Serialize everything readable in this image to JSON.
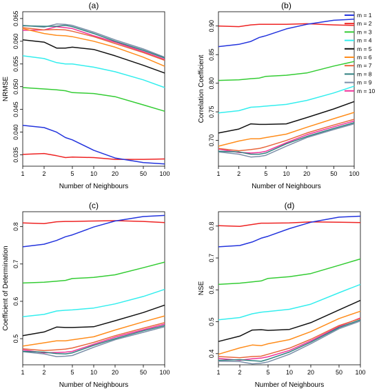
{
  "legend": [
    {
      "label": "m = 1",
      "color": "#2233dd"
    },
    {
      "label": "m = 2",
      "color": "#ee2222"
    },
    {
      "label": "m = 3",
      "color": "#33cc33"
    },
    {
      "label": "m = 4",
      "color": "#33eeee"
    },
    {
      "label": "m = 5",
      "color": "#111111"
    },
    {
      "label": "m = 6",
      "color": "#ff8c1a"
    },
    {
      "label": "m = 7",
      "color": "#e8663b"
    },
    {
      "label": "m = 8",
      "color": "#2f7f7f"
    },
    {
      "label": "m = 9",
      "color": "#7a8ea8"
    },
    {
      "label": "m = 10",
      "color": "#ee3399"
    }
  ],
  "chart_data": [
    {
      "type": "line",
      "title": "(a)",
      "xlabel": "Number of Neighbours",
      "ylabel": "NRMSE",
      "x_scale": "log",
      "xlim": [
        1,
        100
      ],
      "ylim": [
        0.0325,
        0.0665
      ],
      "x_ticks": [
        1,
        2,
        5,
        10,
        20,
        50,
        100
      ],
      "x_tick_labels": [
        "1",
        "2",
        "5",
        "10",
        "20",
        "50",
        "100"
      ],
      "y_ticks": [
        0.035,
        0.04,
        0.045,
        0.05,
        0.055,
        0.06,
        0.065
      ],
      "y_tick_labels": [
        "0.035",
        "0.040",
        "0.045",
        "0.050",
        "0.055",
        "0.060",
        "0.065"
      ],
      "x": [
        1,
        2,
        3,
        4,
        5,
        10,
        20,
        50,
        100
      ],
      "series": [
        {
          "name": "m = 1",
          "values": [
            0.0415,
            0.041,
            0.04,
            0.0388,
            0.0383,
            0.036,
            0.0343,
            0.0333,
            0.033
          ]
        },
        {
          "name": "m = 2",
          "values": [
            0.0351,
            0.0353,
            0.0348,
            0.0344,
            0.0345,
            0.0344,
            0.034,
            0.034,
            0.0341
          ]
        },
        {
          "name": "m = 3",
          "values": [
            0.0498,
            0.0495,
            0.0493,
            0.0491,
            0.0487,
            0.0485,
            0.0478,
            0.046,
            0.0446
          ]
        },
        {
          "name": "m = 4",
          "values": [
            0.0568,
            0.0562,
            0.0553,
            0.055,
            0.055,
            0.0543,
            0.0533,
            0.0515,
            0.0498
          ]
        },
        {
          "name": "m = 5",
          "values": [
            0.0603,
            0.0598,
            0.0585,
            0.0585,
            0.0587,
            0.0582,
            0.0568,
            0.0547,
            0.053
          ]
        },
        {
          "name": "m = 6",
          "values": [
            0.0628,
            0.0617,
            0.0613,
            0.0612,
            0.061,
            0.06,
            0.0587,
            0.0565,
            0.0545
          ]
        },
        {
          "name": "m = 7",
          "values": [
            0.063,
            0.0625,
            0.0626,
            0.0625,
            0.0622,
            0.061,
            0.0595,
            0.0575,
            0.0558
          ]
        },
        {
          "name": "m = 8",
          "values": [
            0.0634,
            0.0633,
            0.0633,
            0.0635,
            0.0632,
            0.0617,
            0.06,
            0.058,
            0.0563
          ]
        },
        {
          "name": "m = 9",
          "values": [
            0.0635,
            0.0631,
            0.0638,
            0.0637,
            0.0635,
            0.062,
            0.0603,
            0.0583,
            0.0565
          ]
        },
        {
          "name": "m = 10",
          "values": [
            0.0624,
            0.0625,
            0.0632,
            0.063,
            0.0628,
            0.0612,
            0.0598,
            0.0577,
            0.056
          ]
        }
      ]
    },
    {
      "type": "line",
      "title": "(b)",
      "xlabel": "Number of Neighbours",
      "ylabel": "Correlation Coefficient",
      "x_scale": "log",
      "xlim": [
        1,
        100
      ],
      "ylim": [
        0.655,
        0.925
      ],
      "x_ticks": [
        1,
        2,
        5,
        10,
        20,
        50,
        100
      ],
      "x_tick_labels": [
        "1",
        "2",
        "5",
        "10",
        "20",
        "50",
        "100"
      ],
      "y_ticks": [
        0.7,
        0.75,
        0.8,
        0.85,
        0.9
      ],
      "y_tick_labels": [
        "0.70",
        "0.75",
        "0.80",
        "0.85",
        "0.90"
      ],
      "x": [
        1,
        2,
        3,
        4,
        5,
        10,
        20,
        50,
        100
      ],
      "series": [
        {
          "name": "m = 1",
          "values": [
            0.864,
            0.868,
            0.873,
            0.88,
            0.883,
            0.895,
            0.903,
            0.91,
            0.912
          ]
        },
        {
          "name": "m = 2",
          "values": [
            0.9,
            0.899,
            0.902,
            0.903,
            0.903,
            0.903,
            0.904,
            0.902,
            0.901
          ]
        },
        {
          "name": "m = 3",
          "values": [
            0.805,
            0.806,
            0.808,
            0.809,
            0.812,
            0.814,
            0.818,
            0.83,
            0.838
          ]
        },
        {
          "name": "m = 4",
          "values": [
            0.748,
            0.752,
            0.758,
            0.759,
            0.76,
            0.763,
            0.77,
            0.783,
            0.795
          ]
        },
        {
          "name": "m = 5",
          "values": [
            0.713,
            0.72,
            0.729,
            0.728,
            0.728,
            0.729,
            0.74,
            0.755,
            0.768
          ]
        },
        {
          "name": "m = 6",
          "values": [
            0.69,
            0.699,
            0.703,
            0.703,
            0.705,
            0.711,
            0.723,
            0.738,
            0.749
          ]
        },
        {
          "name": "m = 7",
          "values": [
            0.686,
            0.682,
            0.684,
            0.686,
            0.689,
            0.7,
            0.713,
            0.727,
            0.737
          ]
        },
        {
          "name": "m = 8",
          "values": [
            0.681,
            0.68,
            0.676,
            0.676,
            0.678,
            0.694,
            0.707,
            0.721,
            0.731
          ]
        },
        {
          "name": "m = 9",
          "values": [
            0.68,
            0.676,
            0.671,
            0.672,
            0.674,
            0.69,
            0.705,
            0.719,
            0.729
          ]
        },
        {
          "name": "m = 10",
          "values": [
            0.685,
            0.679,
            0.678,
            0.679,
            0.681,
            0.696,
            0.71,
            0.724,
            0.734
          ]
        }
      ]
    },
    {
      "type": "line",
      "title": "(c)",
      "xlabel": "Number of Neighbours",
      "ylabel": "Coefficient of Determination",
      "x_scale": "log",
      "xlim": [
        1,
        100
      ],
      "ylim": [
        0.43,
        0.84
      ],
      "x_ticks": [
        1,
        2,
        5,
        10,
        20,
        50,
        100
      ],
      "x_tick_labels": [
        "1",
        "2",
        "5",
        "10",
        "20",
        "50",
        "100"
      ],
      "y_ticks": [
        0.5,
        0.6,
        0.7,
        0.8
      ],
      "y_tick_labels": [
        "0.5",
        "0.6",
        "0.7",
        "0.8"
      ],
      "x": [
        1,
        2,
        3,
        4,
        5,
        10,
        20,
        50,
        100
      ],
      "series": [
        {
          "name": "m = 1",
          "values": [
            0.746,
            0.753,
            0.763,
            0.773,
            0.778,
            0.799,
            0.815,
            0.827,
            0.83
          ]
        },
        {
          "name": "m = 2",
          "values": [
            0.81,
            0.808,
            0.813,
            0.814,
            0.814,
            0.815,
            0.816,
            0.814,
            0.811
          ]
        },
        {
          "name": "m = 3",
          "values": [
            0.649,
            0.651,
            0.654,
            0.656,
            0.661,
            0.664,
            0.671,
            0.69,
            0.705
          ]
        },
        {
          "name": "m = 4",
          "values": [
            0.559,
            0.565,
            0.574,
            0.576,
            0.577,
            0.582,
            0.593,
            0.613,
            0.632
          ]
        },
        {
          "name": "m = 5",
          "values": [
            0.508,
            0.518,
            0.531,
            0.53,
            0.53,
            0.532,
            0.548,
            0.57,
            0.59
          ]
        },
        {
          "name": "m = 6",
          "values": [
            0.48,
            0.489,
            0.494,
            0.494,
            0.497,
            0.505,
            0.523,
            0.545,
            0.561
          ]
        },
        {
          "name": "m = 7",
          "values": [
            0.473,
            0.468,
            0.47,
            0.472,
            0.475,
            0.49,
            0.508,
            0.528,
            0.543
          ]
        },
        {
          "name": "m = 8",
          "values": [
            0.466,
            0.464,
            0.46,
            0.459,
            0.462,
            0.482,
            0.5,
            0.521,
            0.535
          ]
        },
        {
          "name": "m = 9",
          "values": [
            0.465,
            0.459,
            0.452,
            0.453,
            0.455,
            0.477,
            0.497,
            0.517,
            0.532
          ]
        },
        {
          "name": "m = 10",
          "values": [
            0.47,
            0.462,
            0.463,
            0.464,
            0.466,
            0.485,
            0.504,
            0.524,
            0.539
          ]
        }
      ]
    },
    {
      "type": "line",
      "title": "(d)",
      "xlabel": "Number of Neighbours",
      "ylabel": "NSE",
      "x_scale": "log",
      "xlim": [
        1,
        100
      ],
      "ylim": [
        0.365,
        0.845
      ],
      "x_ticks": [
        1,
        2,
        5,
        10,
        20,
        50,
        100
      ],
      "x_tick_labels": [
        "1",
        "2",
        "5",
        "10",
        "20",
        "50",
        "100"
      ],
      "y_ticks": [
        0.4,
        0.5,
        0.6,
        0.7,
        0.8
      ],
      "y_tick_labels": [
        "0.4",
        "0.5",
        "0.6",
        "0.7",
        "0.8"
      ],
      "x": [
        1,
        2,
        3,
        4,
        5,
        10,
        20,
        50,
        100
      ],
      "series": [
        {
          "name": "m = 1",
          "values": [
            0.735,
            0.739,
            0.75,
            0.762,
            0.768,
            0.792,
            0.812,
            0.828,
            0.831
          ]
        },
        {
          "name": "m = 2",
          "values": [
            0.801,
            0.799,
            0.805,
            0.809,
            0.809,
            0.81,
            0.813,
            0.812,
            0.811
          ]
        },
        {
          "name": "m = 3",
          "values": [
            0.617,
            0.621,
            0.625,
            0.628,
            0.636,
            0.641,
            0.651,
            0.677,
            0.697
          ]
        },
        {
          "name": "m = 4",
          "values": [
            0.506,
            0.513,
            0.525,
            0.53,
            0.532,
            0.539,
            0.555,
            0.591,
            0.617
          ]
        },
        {
          "name": "m = 5",
          "values": [
            0.438,
            0.455,
            0.474,
            0.475,
            0.473,
            0.476,
            0.497,
            0.537,
            0.567
          ]
        },
        {
          "name": "m = 6",
          "values": [
            0.398,
            0.418,
            0.427,
            0.425,
            0.431,
            0.444,
            0.469,
            0.51,
            0.533
          ]
        },
        {
          "name": "m = 7",
          "values": [
            0.391,
            0.387,
            0.391,
            0.392,
            0.398,
            0.417,
            0.445,
            0.488,
            0.51
          ]
        },
        {
          "name": "m = 8",
          "values": [
            0.379,
            0.381,
            0.378,
            0.376,
            0.382,
            0.405,
            0.436,
            0.482,
            0.506
          ]
        },
        {
          "name": "m = 9",
          "values": [
            0.376,
            0.375,
            0.368,
            0.37,
            0.374,
            0.398,
            0.431,
            0.478,
            0.502
          ]
        },
        {
          "name": "m = 10",
          "values": [
            0.385,
            0.379,
            0.384,
            0.386,
            0.39,
            0.41,
            0.44,
            0.485,
            0.512
          ]
        }
      ]
    }
  ]
}
